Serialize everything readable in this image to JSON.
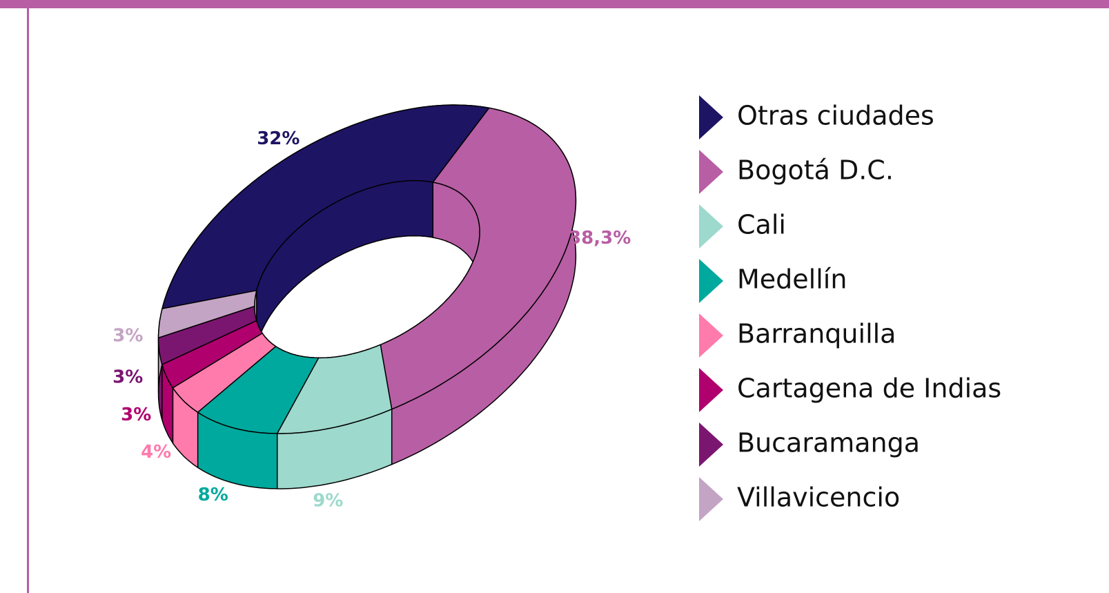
{
  "chart_data": {
    "type": "donut",
    "categories": [
      "Otras ciudades",
      "Bogotá D.C.",
      "Cali",
      "Medellín",
      "Barranquilla",
      "Cartagena de Indias",
      "Bucaramanga",
      "Villavicencio"
    ],
    "values": [
      32,
      38.3,
      9,
      8,
      4,
      3,
      3,
      3
    ],
    "value_labels": [
      "32%",
      "38,3%",
      "9%",
      "8%",
      "4%",
      "3%",
      "3%",
      "3%"
    ],
    "colors": [
      "#1e1464",
      "#b85ea4",
      "#9dd9cc",
      "#00a99d",
      "#ff7bac",
      "#b0006e",
      "#7b1670",
      "#c4a4c4"
    ],
    "legend": "right"
  }
}
